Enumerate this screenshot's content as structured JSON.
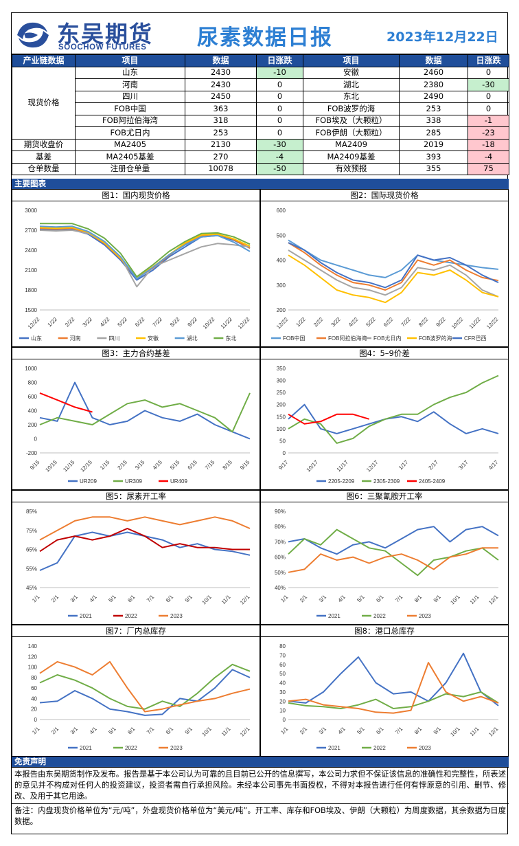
{
  "header": {
    "brand_cn": "东吴期货",
    "brand_en": "SOOCHOW FUTURES",
    "title": "尿素数据日报",
    "date": "2023年12月22日"
  },
  "colors": {
    "header_blue": "#1f4e9a",
    "title_blue": "#2d7fd3",
    "up_red": "#ffc7ce",
    "down_green": "#c6efce"
  },
  "table": {
    "headers": [
      "产业链数据",
      "项目",
      "数据",
      "日涨跌",
      "项目",
      "数据",
      "日涨跌"
    ],
    "group_spot": "现货价格",
    "spot_rows": [
      {
        "l_item": "山东",
        "l_val": "2430",
        "l_chg": "-10",
        "l_color": "g",
        "r_item": "安徽",
        "r_val": "2460",
        "r_chg": "0",
        "r_color": ""
      },
      {
        "l_item": "河南",
        "l_val": "2430",
        "l_chg": "0",
        "l_color": "",
        "r_item": "湖北",
        "r_val": "2380",
        "r_chg": "-30",
        "r_color": "g"
      },
      {
        "l_item": "四川",
        "l_val": "2450",
        "l_chg": "0",
        "l_color": "",
        "r_item": "东北",
        "r_val": "2490",
        "r_chg": "0",
        "r_color": ""
      },
      {
        "l_item": "FOB中国",
        "l_val": "363",
        "l_chg": "0",
        "l_color": "",
        "r_item": "FOB波罗的海",
        "r_val": "253",
        "r_chg": "0",
        "r_color": ""
      },
      {
        "l_item": "FOB阿拉伯海湾",
        "l_val": "318",
        "l_chg": "0",
        "l_color": "",
        "r_item": "FOB埃及（大颗粒）",
        "r_val": "338",
        "r_chg": "-1",
        "r_color": "r"
      },
      {
        "l_item": "FOB尤日内",
        "l_val": "253",
        "l_chg": "0",
        "l_color": "",
        "r_item": "FOB伊朗（大颗粒）",
        "r_val": "285",
        "r_chg": "-23",
        "r_color": "r"
      }
    ],
    "other_rows": [
      {
        "group": "期货收盘价",
        "l_item": "MA2405",
        "l_val": "2130",
        "l_chg": "-30",
        "l_color": "g",
        "r_item": "MA2409",
        "r_val": "2019",
        "r_chg": "-18",
        "r_color": "r"
      },
      {
        "group": "基差",
        "l_item": "MA2405基差",
        "l_val": "270",
        "l_chg": "-4",
        "l_color": "g",
        "r_item": "MA2409基差",
        "r_val": "393",
        "r_chg": "-4",
        "r_color": "r"
      },
      {
        "group": "仓单数量",
        "l_item": "注册仓单量",
        "l_val": "10078",
        "l_chg": "-50",
        "l_color": "g",
        "r_item": "有效预报",
        "r_val": "355",
        "r_chg": "75",
        "r_color": "r"
      }
    ]
  },
  "section_charts": "主要图表",
  "section_disclaimer": "免责声明",
  "disclaimer": "本报告由东吴期货制作及发布。报告是基于本公司认为可靠的且目前已公开的信息撰写，本公司力求但不保证该信息的准确性和完整性，所表述的意见并不构成对任何人的投资建议，投资者需自行承担风险。未经本公司事先书面授权，不得对本报告进行任何有悖原意的引用、删节、修改、及用于其它用途。",
  "note": "备注：内盘现货价格单位为“元/吨”，外盘现货价格单位为“美元/吨”。开工率、库存和FOB埃及、伊朗（大颗粒）为周度数据，其余数据为日度数据。",
  "chart_data": [
    {
      "id": "c1",
      "type": "line",
      "title": "图1：国内现货价格",
      "ylim": [
        1500,
        3000
      ],
      "yticks": [
        "1500",
        "1800",
        "2100",
        "2400",
        "2700",
        "3000"
      ],
      "xticks": [
        "12/22",
        "1/22",
        "2/22",
        "3/22",
        "4/22",
        "5/22",
        "6/22",
        "7/22",
        "8/22",
        "9/22",
        "10/22",
        "11/22",
        "12/22"
      ],
      "series": [
        {
          "name": "山东",
          "color": "#4472c4",
          "values": [
            2720,
            2700,
            2710,
            2640,
            2480,
            2250,
            1950,
            2100,
            2300,
            2450,
            2600,
            2620,
            2550,
            2430
          ]
        },
        {
          "name": "河南",
          "color": "#ed7d31",
          "values": [
            2730,
            2720,
            2730,
            2660,
            2500,
            2270,
            1980,
            2130,
            2320,
            2500,
            2620,
            2640,
            2560,
            2430
          ]
        },
        {
          "name": "四川",
          "color": "#a5a5a5",
          "values": [
            2700,
            2690,
            2700,
            2650,
            2520,
            2300,
            1850,
            2150,
            2250,
            2350,
            2450,
            2500,
            2480,
            2450
          ]
        },
        {
          "name": "安徽",
          "color": "#ffc000",
          "values": [
            2740,
            2730,
            2740,
            2670,
            2510,
            2280,
            1990,
            2150,
            2330,
            2510,
            2630,
            2640,
            2570,
            2460
          ]
        },
        {
          "name": "湖北",
          "color": "#5b9bd5",
          "values": [
            2760,
            2750,
            2760,
            2680,
            2530,
            2300,
            1970,
            2140,
            2330,
            2480,
            2600,
            2620,
            2520,
            2380
          ]
        },
        {
          "name": "东北",
          "color": "#70ad47",
          "values": [
            2800,
            2800,
            2800,
            2720,
            2580,
            2350,
            2000,
            2180,
            2380,
            2530,
            2650,
            2660,
            2600,
            2490
          ]
        }
      ]
    },
    {
      "id": "c2",
      "type": "line",
      "title": "图2：国际现货价格",
      "ylim": [
        200,
        600
      ],
      "yticks": [
        "200",
        "300",
        "400",
        "500",
        "600"
      ],
      "xticks": [
        "12/22",
        "1/22",
        "2/22",
        "3/22",
        "4/22",
        "5/22",
        "6/22",
        "7/22",
        "8/22",
        "9/22",
        "10/22",
        "11/22",
        "12/22"
      ],
      "series": [
        {
          "name": "FOB中国",
          "color": "#5b9bd5",
          "values": [
            480,
            440,
            400,
            380,
            360,
            340,
            330,
            360,
            420,
            400,
            390,
            380,
            370,
            363
          ]
        },
        {
          "name": "FOB阿拉伯海湾",
          "color": "#ed7d31",
          "values": [
            470,
            430,
            380,
            340,
            310,
            300,
            280,
            310,
            400,
            380,
            400,
            360,
            330,
            318
          ]
        },
        {
          "name": "FOB尤日内",
          "color": "#a5a5a5",
          "values": [
            440,
            400,
            360,
            320,
            290,
            280,
            260,
            290,
            370,
            360,
            380,
            340,
            280,
            253
          ]
        },
        {
          "name": "FOB波罗的海",
          "color": "#ffc000",
          "values": [
            420,
            380,
            330,
            280,
            260,
            250,
            230,
            270,
            350,
            340,
            360,
            320,
            270,
            253
          ]
        },
        {
          "name": "CFR巴西",
          "color": "#4472c4",
          "values": [
            470,
            440,
            390,
            350,
            320,
            310,
            290,
            320,
            420,
            400,
            410,
            380,
            340,
            310
          ]
        }
      ]
    },
    {
      "id": "c3",
      "type": "line",
      "title": "图3：主力合约基差",
      "ylim": [
        -200,
        1000
      ],
      "yticks": [
        "-200",
        "0",
        "200",
        "400",
        "600",
        "800",
        "1000"
      ],
      "xticks": [
        "9/15",
        "10/15",
        "11/15",
        "12/15",
        "1/15",
        "2/15",
        "3/15",
        "4/15",
        "5/15",
        "6/15",
        "7/15",
        "8/15",
        "9/15"
      ],
      "series": [
        {
          "name": "UR209",
          "color": "#4472c4",
          "values": [
            300,
            250,
            800,
            300,
            200,
            250,
            400,
            300,
            250,
            350,
            200,
            100,
            0
          ]
        },
        {
          "name": "UR309",
          "color": "#70ad47",
          "values": [
            200,
            300,
            250,
            200,
            350,
            500,
            550,
            450,
            500,
            400,
            300,
            100,
            650
          ]
        },
        {
          "name": "UR409",
          "color": "#ff0000",
          "values": [
            650,
            550,
            450,
            380,
            null,
            null,
            null,
            null,
            null,
            null,
            null,
            null,
            null
          ]
        }
      ]
    },
    {
      "id": "c4",
      "type": "line",
      "title": "图4：5–9价差",
      "ylim": [
        0,
        350
      ],
      "yticks": [
        "0",
        "50",
        "100",
        "150",
        "200",
        "250",
        "300",
        "350"
      ],
      "xticks": [
        "9/17",
        "10/17",
        "11/17",
        "12/17",
        "1/17",
        "2/17",
        "3/17",
        "4/17"
      ],
      "series": [
        {
          "name": "2205-2209",
          "color": "#4472c4",
          "values": [
            140,
            200,
            100,
            80,
            100,
            120,
            140,
            150,
            130,
            170,
            120,
            80,
            100,
            80
          ]
        },
        {
          "name": "2305-2309",
          "color": "#70ad47",
          "values": [
            100,
            140,
            120,
            40,
            60,
            110,
            140,
            160,
            160,
            200,
            230,
            250,
            290,
            320
          ]
        },
        {
          "name": "2405-2409",
          "color": "#ff0000",
          "values": [
            160,
            120,
            130,
            160,
            160,
            140,
            null,
            null,
            null,
            null,
            null,
            null,
            null,
            null
          ]
        }
      ]
    },
    {
      "id": "c5",
      "type": "line",
      "title": "图5：尿素开工率",
      "ylim": [
        45,
        85
      ],
      "yticks": [
        "45%",
        "55%",
        "65%",
        "75%",
        "85%"
      ],
      "xticks": [
        "1/1",
        "2/1",
        "3/1",
        "4/1",
        "5/1",
        "6/1",
        "7/1",
        "8/1",
        "9/1",
        "10/1",
        "11/1",
        "12/1"
      ],
      "series": [
        {
          "name": "2021",
          "color": "#4472c4",
          "values": [
            54,
            58,
            72,
            74,
            72,
            74,
            72,
            70,
            66,
            68,
            65,
            64,
            62
          ]
        },
        {
          "name": "2022",
          "color": "#c00000",
          "values": [
            64,
            70,
            72,
            70,
            72,
            76,
            72,
            66,
            68,
            66,
            66,
            65,
            65
          ]
        },
        {
          "name": "2023",
          "color": "#ed7d31",
          "values": [
            70,
            75,
            80,
            82,
            82,
            80,
            82,
            80,
            78,
            80,
            82,
            80,
            76
          ]
        }
      ]
    },
    {
      "id": "c6",
      "type": "line",
      "title": "图6：三聚氰胺开工率",
      "ylim": [
        40,
        90
      ],
      "yticks": [
        "40%",
        "50%",
        "60%",
        "70%",
        "80%",
        "90%"
      ],
      "xticks": [
        "1/1",
        "2/1",
        "3/1",
        "4/1",
        "5/1",
        "6/1",
        "7/1",
        "8/1",
        "9/1",
        "10/1",
        "11/1",
        "12/1"
      ],
      "series": [
        {
          "name": "2021",
          "color": "#4472c4",
          "values": [
            70,
            72,
            66,
            62,
            68,
            70,
            66,
            72,
            78,
            80,
            70,
            78,
            80,
            74
          ]
        },
        {
          "name": "2022",
          "color": "#70ad47",
          "values": [
            62,
            72,
            68,
            78,
            72,
            66,
            64,
            56,
            48,
            58,
            60,
            64,
            66,
            58
          ]
        },
        {
          "name": "2023",
          "color": "#ed7d31",
          "values": [
            50,
            52,
            62,
            58,
            60,
            56,
            60,
            62,
            58,
            52,
            60,
            62,
            66,
            66
          ]
        }
      ]
    },
    {
      "id": "c7",
      "type": "line",
      "title": "图7：厂内总库存",
      "ylim": [
        0,
        140
      ],
      "yticks": [
        "0",
        "20",
        "40",
        "60",
        "80",
        "100",
        "120",
        "140"
      ],
      "xticks": [
        "1/1",
        "2/1",
        "3/1",
        "4/1",
        "5/1",
        "6/1",
        "7/1",
        "8/1",
        "9/1",
        "10/1",
        "11/1",
        "12/1"
      ],
      "series": [
        {
          "name": "2021",
          "color": "#4472c4",
          "values": [
            32,
            35,
            55,
            40,
            20,
            15,
            8,
            10,
            40,
            35,
            60,
            95,
            80
          ]
        },
        {
          "name": "2022",
          "color": "#70ad47",
          "values": [
            70,
            85,
            75,
            60,
            40,
            25,
            20,
            35,
            25,
            50,
            80,
            105,
            92
          ]
        },
        {
          "name": "2023",
          "color": "#ed7d31",
          "values": [
            88,
            110,
            100,
            85,
            110,
            60,
            15,
            20,
            28,
            35,
            40,
            50,
            58
          ]
        }
      ]
    },
    {
      "id": "c8",
      "type": "line",
      "title": "图8：港口总库存",
      "ylim": [
        0,
        80
      ],
      "yticks": [
        "0",
        "10",
        "20",
        "30",
        "40",
        "50",
        "60",
        "70",
        "80"
      ],
      "xticks": [
        "1/1",
        "2/1",
        "3/1",
        "4/1",
        "5/1",
        "6/1",
        "7/1",
        "8/1",
        "9/1",
        "10/1",
        "11/1",
        "12/1"
      ],
      "series": [
        {
          "name": "2021",
          "color": "#4472c4",
          "values": [
            20,
            18,
            30,
            50,
            68,
            40,
            28,
            30,
            20,
            40,
            72,
            30,
            15
          ]
        },
        {
          "name": "2022",
          "color": "#70ad47",
          "values": [
            18,
            15,
            14,
            12,
            16,
            22,
            12,
            14,
            20,
            28,
            25,
            30,
            18
          ]
        },
        {
          "name": "2023",
          "color": "#ed7d31",
          "values": [
            20,
            22,
            16,
            14,
            12,
            8,
            7,
            10,
            62,
            30,
            20,
            25,
            18
          ]
        }
      ]
    }
  ]
}
